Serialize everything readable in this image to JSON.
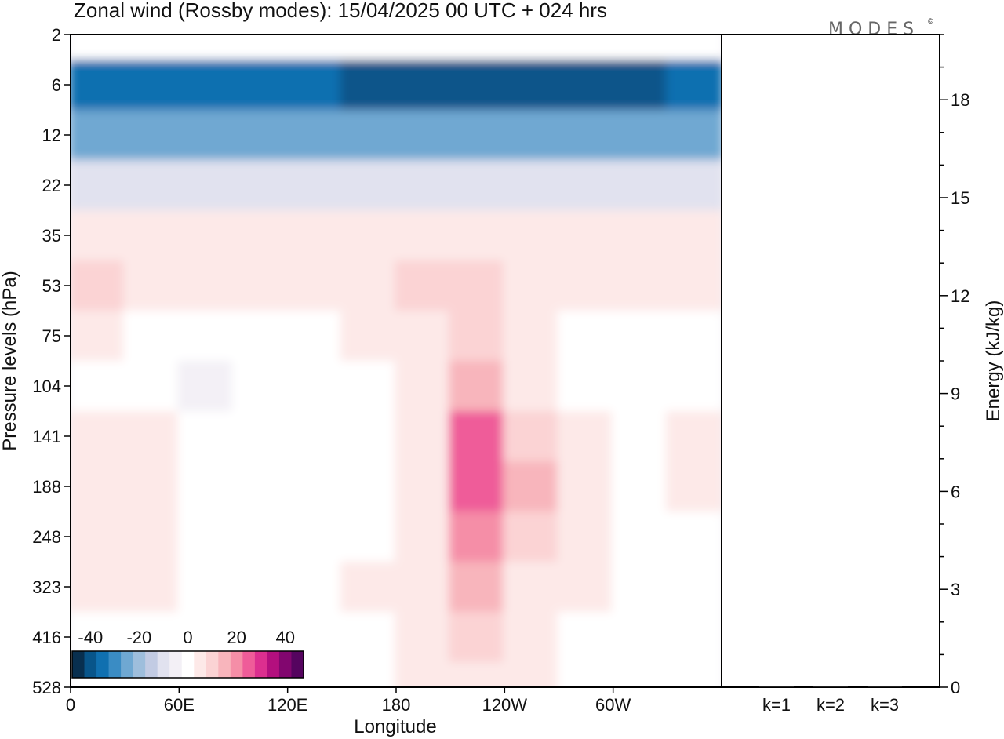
{
  "title": "Zonal wind (Rossby modes):  15/04/2025  00 UTC  + 024 hrs",
  "brand": "MODES",
  "brand_mark": "©",
  "chart_data": [
    {
      "type": "heatmap",
      "title": "Zonal wind (Rossby modes):  15/04/2025  00 UTC  + 024 hrs",
      "xlabel": "Longitude",
      "ylabel": "Pressure levels (hPa)",
      "x_ticks": [
        "0",
        "60E",
        "120E",
        "180",
        "120W",
        "60W"
      ],
      "y_ticks": [
        "2",
        "6",
        "12",
        "22",
        "35",
        "53",
        "75",
        "104",
        "141",
        "188",
        "248",
        "323",
        "416",
        "528"
      ],
      "colorbar": {
        "tick_labels": [
          "-40",
          "-20",
          "0",
          "20",
          "40"
        ],
        "levels": [
          -45,
          -40,
          -35,
          -30,
          -25,
          -20,
          -15,
          -10,
          -5,
          0,
          5,
          10,
          15,
          20,
          25,
          30,
          35,
          40,
          45
        ],
        "colors": [
          "#082f4f",
          "#08558a",
          "#1070b0",
          "#3a8cc4",
          "#6fa8d2",
          "#9ebedc",
          "#c2cbe3",
          "#e1e2ef",
          "#f3f0f6",
          "#ffffff",
          "#fde9e8",
          "#fbd3d4",
          "#f8b5bc",
          "#f58ea7",
          "#ef5c99",
          "#dc2f8f",
          "#b30f7e",
          "#82066f",
          "#55045f"
        ]
      },
      "approx_values": {
        "columns": [
          "0",
          "30E",
          "60E",
          "90E",
          "120E",
          "150E",
          "180",
          "150W",
          "120W",
          "90W",
          "60W",
          "30W"
        ],
        "levels": [
          "2",
          "6",
          "12",
          "22",
          "35",
          "53",
          "75",
          "104",
          "141",
          "188",
          "248",
          "323",
          "416",
          "528"
        ],
        "z": [
          [
            2,
            2,
            2,
            2,
            2,
            2,
            2,
            2,
            2,
            2,
            2,
            2
          ],
          [
            -35,
            -35,
            -35,
            -35,
            -37,
            -42,
            -42,
            -42,
            -40,
            -42,
            -42,
            -35
          ],
          [
            -25,
            -25,
            -25,
            -25,
            -27,
            -27,
            -27,
            -27,
            -27,
            -27,
            -27,
            -25
          ],
          [
            -10,
            -10,
            -10,
            -10,
            -10,
            -10,
            -10,
            -10,
            -10,
            -10,
            -10,
            -10
          ],
          [
            3,
            3,
            3,
            3,
            3,
            3,
            4,
            4,
            3,
            3,
            3,
            3
          ],
          [
            8,
            7,
            7,
            7,
            7,
            7,
            9,
            11,
            7,
            7,
            7,
            7
          ],
          [
            3,
            2,
            2,
            2,
            2,
            3,
            6,
            9,
            4,
            2,
            2,
            2
          ],
          [
            2,
            0,
            -3,
            0,
            0,
            2,
            6,
            15,
            7,
            2,
            0,
            0
          ],
          [
            5,
            4,
            1,
            1,
            -2,
            2,
            5,
            27,
            12,
            3,
            2,
            5
          ],
          [
            6,
            4,
            -1,
            1,
            -2,
            2,
            7,
            24,
            13,
            3,
            2,
            5
          ],
          [
            5,
            4,
            1,
            1,
            -2,
            2,
            7,
            18,
            10,
            3,
            1,
            2
          ],
          [
            3,
            3,
            1,
            1,
            -1,
            3,
            7,
            13,
            6,
            3,
            1,
            1
          ],
          [
            1,
            1,
            1,
            1,
            1,
            2,
            7,
            9,
            4,
            2,
            1,
            1
          ],
          [
            1,
            1,
            1,
            1,
            -1,
            2,
            4,
            5,
            3,
            1,
            1,
            -1
          ]
        ]
      }
    },
    {
      "type": "bar",
      "ylabel": "Energy (kJ/kg)",
      "categories": [
        "k=1",
        "k=2",
        "k=3"
      ],
      "values": [
        0.03,
        0.02,
        0.02
      ],
      "ylim": [
        0,
        20
      ],
      "y_ticks": [
        "0",
        "3",
        "6",
        "9",
        "12",
        "15",
        "18"
      ]
    }
  ]
}
